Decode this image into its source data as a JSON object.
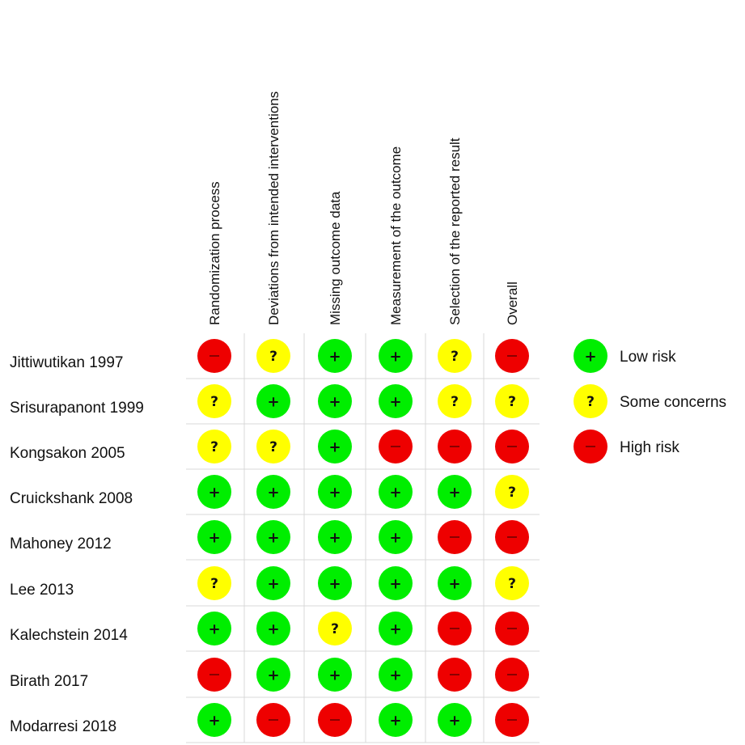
{
  "chart_data": {
    "type": "table",
    "columns": [
      "Randomization process",
      "Deviations from intended interventions",
      "Missing outcome data",
      "Measurement of the outcome",
      "Selection of the reported result",
      "Overall"
    ],
    "rows": [
      "Jittiwutikan 1997",
      "Srisurapanont 1999",
      "Kongsakon 2005",
      "Cruickshank 2008",
      "Mahoney 2012",
      "Lee 2013",
      "Kalechstein 2014",
      "Birath 2017",
      "Modarresi 2018"
    ],
    "values": [
      [
        "high",
        "some",
        "low",
        "low",
        "some",
        "high"
      ],
      [
        "some",
        "low",
        "low",
        "low",
        "some",
        "some"
      ],
      [
        "some",
        "some",
        "low",
        "high",
        "high",
        "high"
      ],
      [
        "low",
        "low",
        "low",
        "low",
        "low",
        "some"
      ],
      [
        "low",
        "low",
        "low",
        "low",
        "high",
        "high"
      ],
      [
        "some",
        "low",
        "low",
        "low",
        "low",
        "some"
      ],
      [
        "low",
        "low",
        "some",
        "low",
        "high",
        "high"
      ],
      [
        "high",
        "low",
        "low",
        "low",
        "high",
        "high"
      ],
      [
        "low",
        "high",
        "high",
        "low",
        "low",
        "high"
      ]
    ],
    "levels": {
      "low": {
        "label": "Low risk",
        "symbol": "+",
        "color": "#00ee00"
      },
      "some": {
        "label": "Some concerns",
        "symbol": "?",
        "color": "#ffff00"
      },
      "high": {
        "label": "High risk",
        "symbol": "—",
        "color": "#ee0000"
      }
    },
    "legend_order": [
      "low",
      "some",
      "high"
    ],
    "legend_position": "top-right",
    "grid": true,
    "grid_color": "#d9d9d9"
  }
}
